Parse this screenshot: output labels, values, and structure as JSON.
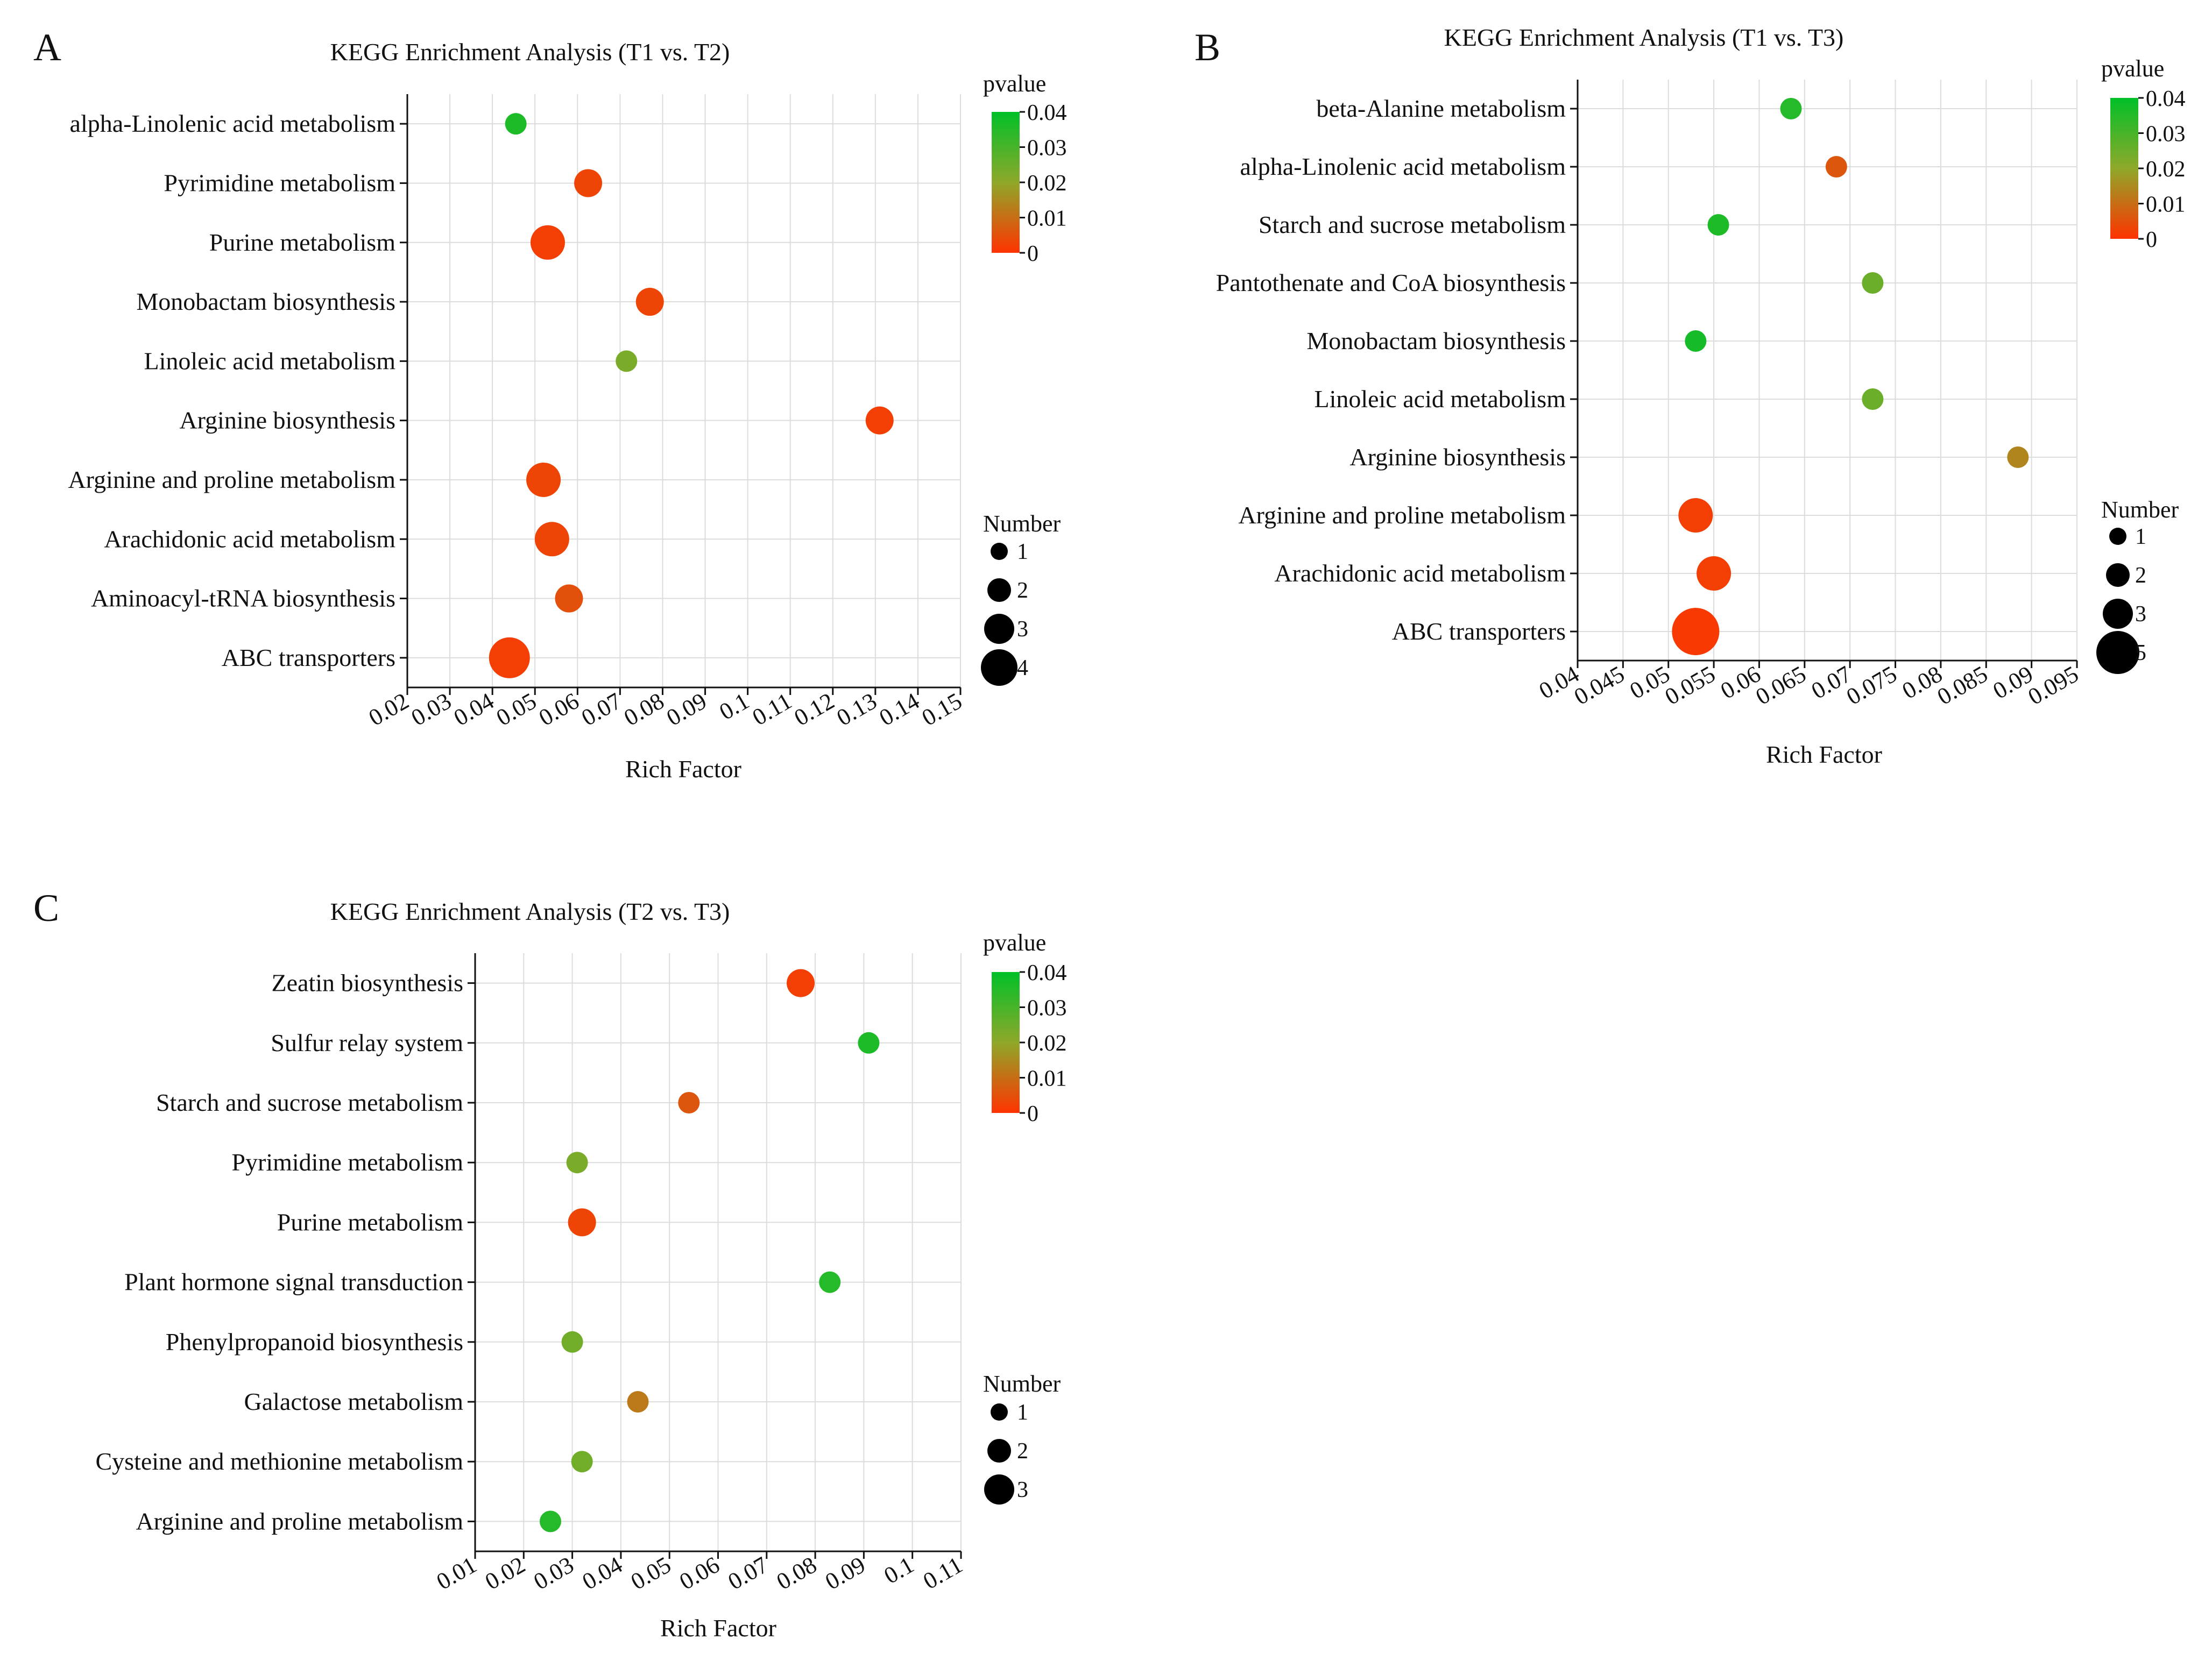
{
  "chart_data": [
    {
      "type": "scatter",
      "panel": "A",
      "title": "KEGG Enrichment Analysis (T1 vs. T2)",
      "xlabel": "Rich Factor",
      "xlim": [
        0.02,
        0.15
      ],
      "xticks": [
        "0.02",
        "0.03",
        "0.04",
        "0.05",
        "0.06",
        "0.07",
        "0.08",
        "0.09",
        "0.1",
        "0.11",
        "0.12",
        "0.13",
        "0.14",
        "0.15"
      ],
      "categories": [
        "alpha-Linolenic acid metabolism",
        "Pyrimidine metabolism",
        "Purine metabolism",
        "Monobactam biosynthesis",
        "Linoleic acid metabolism",
        "Arginine biosynthesis",
        "Arginine and proline metabolism",
        "Arachidonic acid metabolism",
        "Aminoacyl-tRNA biosynthesis",
        "ABC transporters"
      ],
      "points": [
        {
          "category": "alpha-Linolenic acid metabolism",
          "rich_factor": 0.0455,
          "pvalue": 0.036,
          "number": 1
        },
        {
          "category": "Pyrimidine metabolism",
          "rich_factor": 0.0625,
          "pvalue": 0.003,
          "number": 2
        },
        {
          "category": "Purine metabolism",
          "rich_factor": 0.053,
          "pvalue": 0.002,
          "number": 3
        },
        {
          "category": "Monobactam biosynthesis",
          "rich_factor": 0.077,
          "pvalue": 0.003,
          "number": 2
        },
        {
          "category": "Linoleic acid metabolism",
          "rich_factor": 0.0715,
          "pvalue": 0.023,
          "number": 1
        },
        {
          "category": "Arginine biosynthesis",
          "rich_factor": 0.131,
          "pvalue": 0.002,
          "number": 2
        },
        {
          "category": "Arginine and proline metabolism",
          "rich_factor": 0.052,
          "pvalue": 0.003,
          "number": 3
        },
        {
          "category": "Arachidonic acid metabolism",
          "rich_factor": 0.054,
          "pvalue": 0.003,
          "number": 3
        },
        {
          "category": "Aminoacyl-tRNA biosynthesis",
          "rich_factor": 0.058,
          "pvalue": 0.005,
          "number": 2
        },
        {
          "category": "ABC transporters",
          "rich_factor": 0.044,
          "pvalue": 0.002,
          "number": 4
        }
      ],
      "color_legend": {
        "title": "pvalue",
        "min": 0,
        "max": 0.04,
        "low_color": "#ff3300",
        "high_color": "#00c028",
        "ticks": [
          "0.04",
          "0.03",
          "0.02",
          "0.01",
          "0"
        ]
      },
      "size_legend": {
        "title": "Number",
        "values": [
          1,
          2,
          3,
          4
        ]
      }
    },
    {
      "type": "scatter",
      "panel": "B",
      "title": "KEGG Enrichment Analysis (T1 vs. T3)",
      "xlabel": "Rich Factor",
      "xlim": [
        0.04,
        0.095
      ],
      "xticks": [
        "0.04",
        "0.045",
        "0.05",
        "0.055",
        "0.06",
        "0.065",
        "0.07",
        "0.075",
        "0.08",
        "0.085",
        "0.09",
        "0.095"
      ],
      "categories": [
        "beta-Alanine metabolism",
        "alpha-Linolenic acid metabolism",
        "Starch and sucrose metabolism",
        "Pantothenate and CoA biosynthesis",
        "Monobactam biosynthesis",
        "Linoleic acid metabolism",
        "Arginine biosynthesis",
        "Arginine and proline metabolism",
        "Arachidonic acid metabolism",
        "ABC transporters"
      ],
      "points": [
        {
          "category": "beta-Alanine metabolism",
          "rich_factor": 0.0635,
          "pvalue": 0.035,
          "number": 1
        },
        {
          "category": "alpha-Linolenic acid metabolism",
          "rich_factor": 0.0685,
          "pvalue": 0.006,
          "number": 1
        },
        {
          "category": "Starch and sucrose metabolism",
          "rich_factor": 0.0555,
          "pvalue": 0.036,
          "number": 1
        },
        {
          "category": "Pantothenate and CoA biosynthesis",
          "rich_factor": 0.0725,
          "pvalue": 0.025,
          "number": 1
        },
        {
          "category": "Monobactam biosynthesis",
          "rich_factor": 0.053,
          "pvalue": 0.037,
          "number": 1
        },
        {
          "category": "Linoleic acid metabolism",
          "rich_factor": 0.0725,
          "pvalue": 0.025,
          "number": 1
        },
        {
          "category": "Arginine biosynthesis",
          "rich_factor": 0.0885,
          "pvalue": 0.014,
          "number": 1
        },
        {
          "category": "Arginine and proline metabolism",
          "rich_factor": 0.053,
          "pvalue": 0.002,
          "number": 3
        },
        {
          "category": "Arachidonic acid metabolism",
          "rich_factor": 0.055,
          "pvalue": 0.002,
          "number": 3
        },
        {
          "category": "ABC transporters",
          "rich_factor": 0.053,
          "pvalue": 0.001,
          "number": 5
        }
      ],
      "color_legend": {
        "title": "pvalue",
        "min": 0,
        "max": 0.04,
        "low_color": "#ff3300",
        "high_color": "#00c028",
        "ticks": [
          "0.04",
          "0.03",
          "0.02",
          "0.01",
          "0"
        ]
      },
      "size_legend": {
        "title": "Number",
        "values": [
          1,
          2,
          3,
          5
        ]
      }
    },
    {
      "type": "scatter",
      "panel": "C",
      "title": "KEGG Enrichment Analysis (T2 vs. T3)",
      "xlabel": "Rich Factor",
      "xlim": [
        0.01,
        0.11
      ],
      "xticks": [
        "0.01",
        "0.02",
        "0.03",
        "0.04",
        "0.05",
        "0.06",
        "0.07",
        "0.08",
        "0.09",
        "0.1",
        "0.11"
      ],
      "categories": [
        "Zeatin biosynthesis",
        "Sulfur relay system",
        "Starch and sucrose metabolism",
        "Pyrimidine metabolism",
        "Purine metabolism",
        "Plant hormone signal transduction",
        "Phenylpropanoid biosynthesis",
        "Galactose metabolism",
        "Cysteine and methionine metabolism",
        "Arginine and proline metabolism"
      ],
      "points": [
        {
          "category": "Zeatin biosynthesis",
          "rich_factor": 0.077,
          "pvalue": 0.002,
          "number": 2
        },
        {
          "category": "Sulfur relay system",
          "rich_factor": 0.091,
          "pvalue": 0.036,
          "number": 1
        },
        {
          "category": "Starch and sucrose metabolism",
          "rich_factor": 0.054,
          "pvalue": 0.006,
          "number": 1
        },
        {
          "category": "Pyrimidine metabolism",
          "rich_factor": 0.031,
          "pvalue": 0.023,
          "number": 1
        },
        {
          "category": "Purine metabolism",
          "rich_factor": 0.032,
          "pvalue": 0.003,
          "number": 2
        },
        {
          "category": "Plant hormone signal transduction",
          "rich_factor": 0.083,
          "pvalue": 0.035,
          "number": 1
        },
        {
          "category": "Phenylpropanoid biosynthesis",
          "rich_factor": 0.03,
          "pvalue": 0.024,
          "number": 1
        },
        {
          "category": "Galactose metabolism",
          "rich_factor": 0.0435,
          "pvalue": 0.012,
          "number": 1
        },
        {
          "category": "Cysteine and methionine metabolism",
          "rich_factor": 0.032,
          "pvalue": 0.024,
          "number": 1
        },
        {
          "category": "Arginine and proline metabolism",
          "rich_factor": 0.0255,
          "pvalue": 0.035,
          "number": 1
        }
      ],
      "color_legend": {
        "title": "pvalue",
        "min": 0,
        "max": 0.04,
        "low_color": "#ff3300",
        "high_color": "#00c028",
        "ticks": [
          "0.04",
          "0.03",
          "0.02",
          "0.01",
          "0"
        ]
      },
      "size_legend": {
        "title": "Number",
        "values": [
          1,
          2,
          3
        ]
      }
    }
  ]
}
